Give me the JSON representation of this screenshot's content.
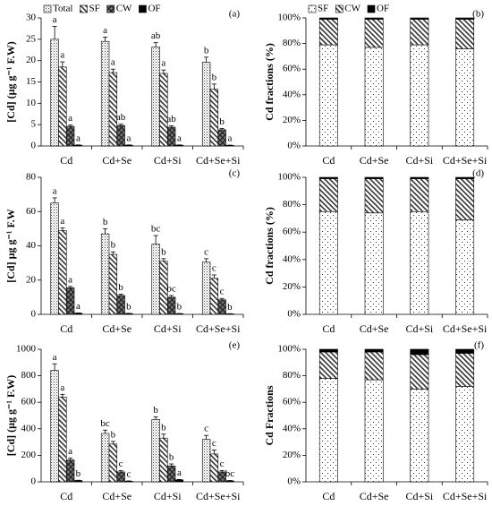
{
  "chart_data": [
    {
      "type": "bar",
      "panel_label": "(a)",
      "ylabel": "[Cd] (µg g⁻¹ F.W)",
      "legend": "top-left",
      "categories": [
        "Cd",
        "Cd+Se",
        "Cd+Si",
        "Cd+Se+Si"
      ],
      "ylim": [
        0,
        30
      ],
      "yticks": [
        0,
        5,
        10,
        15,
        20,
        25,
        30
      ],
      "series": [
        {
          "name": "Total",
          "pattern": "dots",
          "values": [
            25,
            24.5,
            23.2,
            19.6
          ],
          "errors": [
            3,
            1,
            1,
            1.2
          ],
          "labels": [
            "a",
            "a",
            "ab",
            "b"
          ]
        },
        {
          "name": "SF",
          "pattern": "hatch",
          "values": [
            18.5,
            17.2,
            17,
            13.3
          ],
          "errors": [
            1.2,
            0.8,
            0.8,
            1.2
          ],
          "labels": [
            "a",
            "a",
            "a",
            "b"
          ]
        },
        {
          "name": "CW",
          "pattern": "cross",
          "values": [
            4.6,
            4.8,
            4.4,
            3.8
          ],
          "errors": [
            0.3,
            0.3,
            0.3,
            0.3
          ],
          "labels": [
            "a",
            "ab",
            "ab",
            "b"
          ]
        },
        {
          "name": "OF",
          "color": "#000000",
          "values": [
            0.2,
            0.2,
            0.2,
            0.15
          ],
          "errors": [
            0.05,
            0.05,
            0.05,
            0.05
          ],
          "labels": [
            "a",
            "a",
            "a",
            "a"
          ]
        }
      ]
    },
    {
      "type": "stacked_bar",
      "panel_label": "(b)",
      "ylabel": "Cd fractions (%)",
      "legend": "top-left",
      "categories": [
        "Cd",
        "Cd+Se",
        "Cd+Si",
        "Cd+Se+Si"
      ],
      "ylim": [
        0,
        100
      ],
      "yticks": [
        {
          "value": 0,
          "label": "0%"
        },
        {
          "value": 20,
          "label": "20%"
        },
        {
          "value": 40,
          "label": "40%"
        },
        {
          "value": 60,
          "label": "60%"
        },
        {
          "value": 80,
          "label": "80%"
        },
        {
          "value": 100,
          "label": "100%"
        }
      ],
      "series": [
        {
          "name": "SF",
          "pattern": "sparse",
          "values": [
            79,
            77,
            79,
            76
          ]
        },
        {
          "name": "CW",
          "pattern": "hatch",
          "values": [
            20,
            22,
            20,
            23
          ]
        },
        {
          "name": "OF",
          "color": "#000000",
          "values": [
            1,
            1,
            1,
            1
          ]
        }
      ]
    },
    {
      "type": "bar",
      "panel_label": "(c)",
      "ylabel": "[Cd] µg g⁻¹ F.W",
      "categories": [
        "Cd",
        "Cd+Se",
        "Cd+Si",
        "Cd+Se+Si"
      ],
      "ylim": [
        0,
        80
      ],
      "yticks": [
        0,
        20,
        40,
        60,
        80
      ],
      "series": [
        {
          "name": "Total",
          "pattern": "dots",
          "values": [
            65,
            47,
            41,
            30.5
          ],
          "errors": [
            3,
            3,
            5,
            2
          ],
          "labels": [
            "a",
            "b",
            "bc",
            "c"
          ]
        },
        {
          "name": "SF",
          "pattern": "hatch",
          "values": [
            49,
            35,
            31,
            21
          ],
          "errors": [
            1.5,
            1.5,
            1.5,
            2
          ],
          "labels": [
            "a",
            "b",
            "b",
            "c"
          ]
        },
        {
          "name": "CW",
          "pattern": "cross",
          "values": [
            15.5,
            11,
            10,
            8.5
          ],
          "errors": [
            0.8,
            0.8,
            1,
            0.8
          ],
          "labels": [
            "a",
            "b",
            "bc",
            "c"
          ]
        },
        {
          "name": "OF",
          "color": "#000000",
          "values": [
            0.7,
            0.5,
            0.4,
            0.3
          ],
          "errors": [
            0.1,
            0.1,
            0.1,
            0.1
          ],
          "labels": [
            "a",
            "b",
            "b",
            "b"
          ]
        }
      ]
    },
    {
      "type": "stacked_bar",
      "panel_label": "(d)",
      "ylabel": "Cd fractions (%)",
      "categories": [
        "Cd",
        "Cd+Se",
        "Cd+Si",
        "Cd+Se+Si"
      ],
      "ylim": [
        0,
        100
      ],
      "yticks": [
        {
          "value": 0,
          "label": "0%"
        },
        {
          "value": 20,
          "label": "20%"
        },
        {
          "value": 40,
          "label": "40%"
        },
        {
          "value": 60,
          "label": "60%"
        },
        {
          "value": 80,
          "label": "80%"
        },
        {
          "value": 100,
          "label": "100%"
        }
      ],
      "series": [
        {
          "name": "SF",
          "pattern": "sparse",
          "values": [
            75,
            74,
            75,
            69
          ]
        },
        {
          "name": "CW",
          "pattern": "hatch",
          "values": [
            24,
            25,
            24,
            30
          ]
        },
        {
          "name": "OF",
          "color": "#000000",
          "values": [
            1,
            1,
            1,
            1
          ]
        }
      ]
    },
    {
      "type": "bar",
      "panel_label": "(e)",
      "ylabel": "[Cd] (µg g⁻¹ F.W)",
      "categories": [
        "Cd",
        "Cd+Se",
        "Cd+Si",
        "Cd+Se+Si"
      ],
      "ylim": [
        0,
        1000
      ],
      "yticks": [
        0,
        200,
        400,
        600,
        800,
        1000
      ],
      "series": [
        {
          "name": "Total",
          "pattern": "dots",
          "values": [
            840,
            365,
            470,
            320
          ],
          "errors": [
            50,
            25,
            20,
            30
          ],
          "labels": [
            "a",
            "bc",
            "b",
            "c"
          ]
        },
        {
          "name": "SF",
          "pattern": "hatch",
          "values": [
            640,
            285,
            330,
            210
          ],
          "errors": [
            20,
            20,
            30,
            30
          ],
          "labels": [
            "a",
            "b",
            "b",
            "c"
          ]
        },
        {
          "name": "CW",
          "pattern": "cross",
          "values": [
            165,
            75,
            120,
            75
          ],
          "errors": [
            15,
            10,
            15,
            10
          ],
          "labels": [
            "a",
            "c",
            "b",
            "c"
          ]
        },
        {
          "name": "OF",
          "color": "#000000",
          "values": [
            10,
            5,
            15,
            8
          ],
          "errors": [
            2,
            2,
            3,
            2
          ],
          "labels": [
            "b",
            "c",
            "a",
            "bc"
          ]
        }
      ]
    },
    {
      "type": "stacked_bar",
      "panel_label": "(f)",
      "ylabel": "Cd Fractions",
      "categories": [
        "Cd",
        "Cd+Se",
        "Cd+Si",
        "Cd+Se+Si"
      ],
      "ylim": [
        0,
        100
      ],
      "yticks": [
        {
          "value": 0,
          "label": "0%"
        },
        {
          "value": 20,
          "label": "20%"
        },
        {
          "value": 40,
          "label": "40%"
        },
        {
          "value": 60,
          "label": "60%"
        },
        {
          "value": 80,
          "label": "80%"
        },
        {
          "value": 100,
          "label": "100%"
        }
      ],
      "series": [
        {
          "name": "SF",
          "pattern": "sparse",
          "values": [
            78,
            77,
            70,
            72
          ]
        },
        {
          "name": "CW",
          "pattern": "hatch",
          "values": [
            20,
            21,
            26,
            25
          ]
        },
        {
          "name": "OF",
          "color": "#000000",
          "values": [
            2,
            2,
            4,
            3
          ]
        }
      ]
    }
  ]
}
